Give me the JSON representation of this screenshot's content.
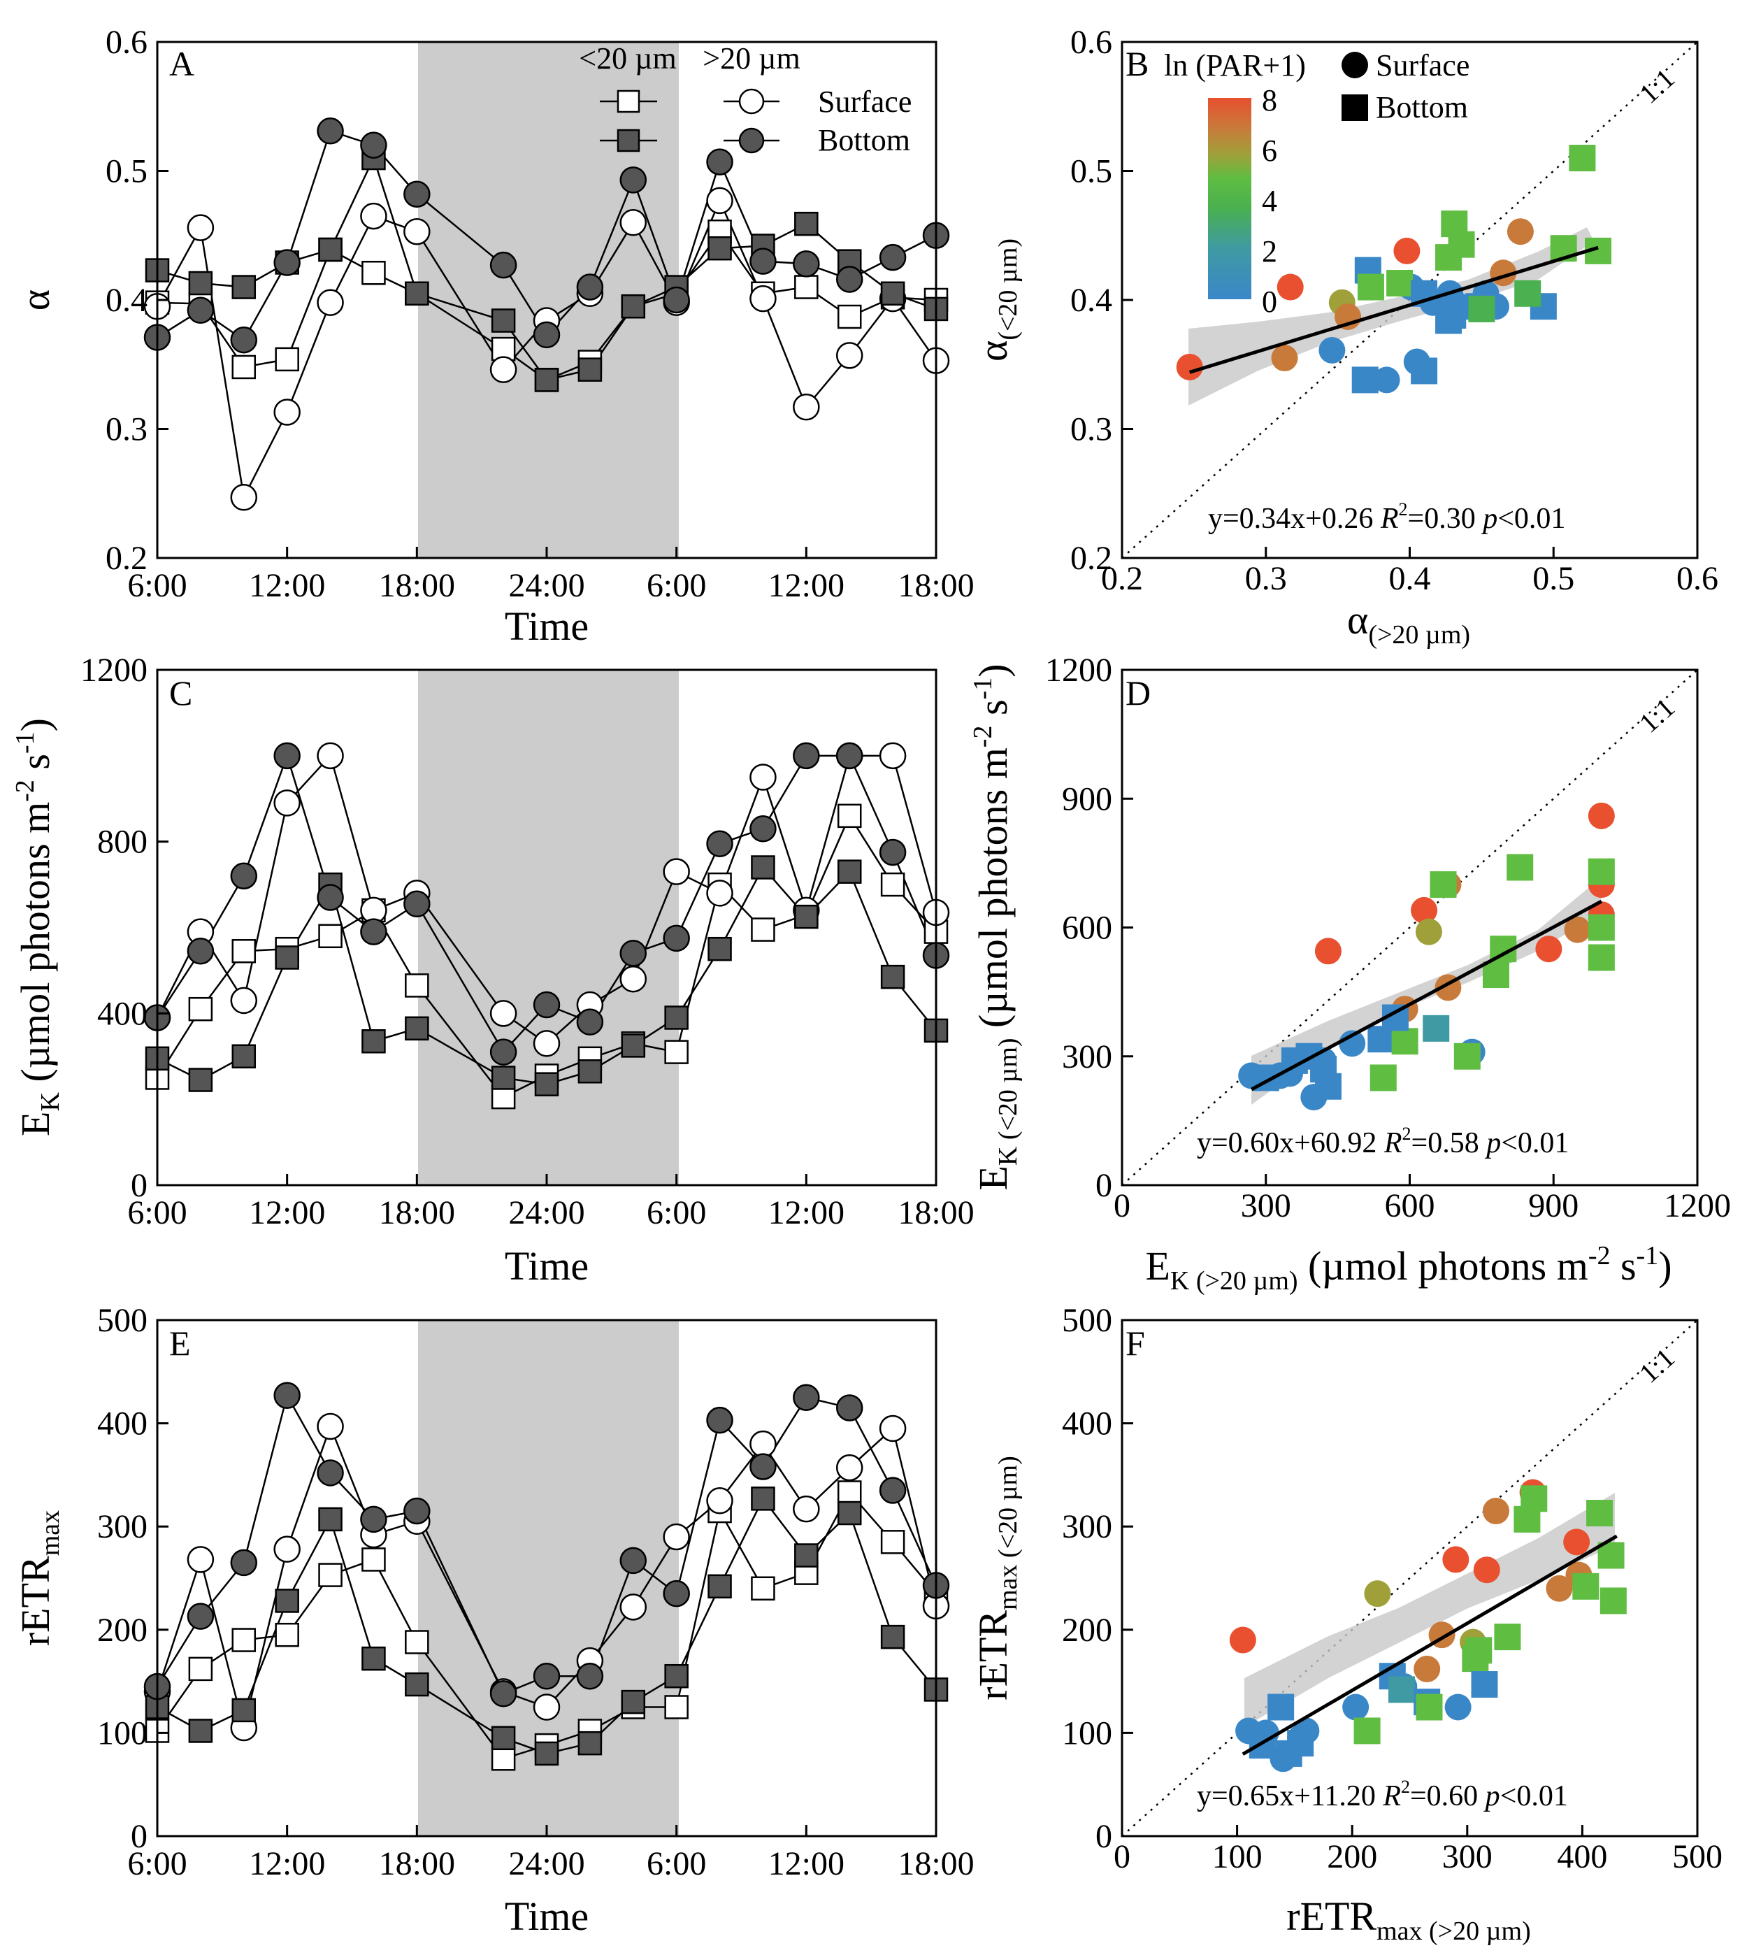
{
  "figure": {
    "legend": {
      "col_small": "<20 µm",
      "col_large": ">20 µm",
      "row_surface": "Surface",
      "row_bottom": "Bottom"
    },
    "scatter_legend": {
      "title": "ln (PAR+1)",
      "surface": "Surface",
      "bottom": "Bottom",
      "colorbar_ticks": [
        "0",
        "2",
        "4",
        "6",
        "8"
      ]
    },
    "one_to_one_label": "1:1"
  },
  "colors": {
    "shade": "#cccccc",
    "filled_marker": "#555555",
    "open_marker": "#ffffff",
    "colormap": [
      "#3a87c8",
      "#3f9aa3",
      "#4ab050",
      "#5fbd42",
      "#a0a03a",
      "#c87a3a",
      "#e85030"
    ]
  },
  "chart_data": [
    {
      "panel": "A",
      "type": "line",
      "xlabel": "Time",
      "ylabel": "α",
      "ylim": [
        0.2,
        0.6
      ],
      "yticks": [
        "0.2",
        "0.3",
        "0.4",
        "0.5",
        "0.6"
      ],
      "xticks": [
        "6:00",
        "12:00",
        "18:00",
        "24:00",
        "6:00",
        "12:00",
        "18:00"
      ],
      "x_hours": [
        6,
        8,
        10,
        12,
        14,
        16,
        18,
        22,
        24,
        26,
        28,
        30,
        32,
        34,
        36,
        38,
        40,
        42
      ],
      "dark_period_hours": [
        18,
        30
      ],
      "series": [
        {
          "name": "<20 µm Surface",
          "marker": "square",
          "fill": "open",
          "values": [
            0.398,
            0.397,
            0.348,
            0.354,
            0.439,
            0.421,
            0.405,
            0.362,
            0.338,
            0.352,
            0.395,
            0.405,
            0.453,
            0.405,
            0.41,
            0.387,
            0.402,
            0.4
          ]
        },
        {
          "name": ">20 µm Surface",
          "marker": "circle",
          "fill": "open",
          "values": [
            0.395,
            0.456,
            0.247,
            0.313,
            0.398,
            0.465,
            0.453,
            0.346,
            0.384,
            0.405,
            0.46,
            0.398,
            0.477,
            0.401,
            0.317,
            0.357,
            0.401,
            0.353
          ]
        },
        {
          "name": "<20 µm Bottom",
          "marker": "square",
          "fill": "filled",
          "values": [
            0.423,
            0.413,
            0.41,
            0.429,
            0.439,
            0.51,
            0.405,
            0.384,
            0.338,
            0.346,
            0.395,
            0.41,
            0.44,
            0.442,
            0.459,
            0.43,
            0.405,
            0.393
          ]
        },
        {
          "name": ">20 µm Bottom",
          "marker": "circle",
          "fill": "filled",
          "values": [
            0.371,
            0.392,
            0.369,
            0.429,
            0.531,
            0.52,
            0.482,
            0.427,
            0.373,
            0.41,
            0.493,
            0.4,
            0.507,
            0.43,
            0.428,
            0.416,
            0.433,
            0.45
          ]
        }
      ]
    },
    {
      "panel": "B",
      "type": "scatter",
      "xlabel": "α(>20 µm)",
      "ylabel": "α(<20 µm)",
      "xlim": [
        0.2,
        0.6
      ],
      "ylim": [
        0.2,
        0.6
      ],
      "xticks": [
        "0.2",
        "0.3",
        "0.4",
        "0.5",
        "0.6"
      ],
      "yticks": [
        "0.2",
        "0.3",
        "0.4",
        "0.5",
        "0.6"
      ],
      "equation": "y=0.34x+0.26 R²=0.30 p<0.01",
      "fit": {
        "slope": 0.34,
        "intercept": 0.26,
        "x_range": [
          0.247,
          0.531
        ]
      },
      "points": [
        [
          0.247,
          0.348,
          "circle",
          7.6
        ],
        [
          0.317,
          0.41,
          "circle",
          7.4
        ],
        [
          0.313,
          0.355,
          "circle",
          7.0
        ],
        [
          0.353,
          0.398,
          "circle",
          5.6
        ],
        [
          0.357,
          0.387,
          "circle",
          6.8
        ],
        [
          0.346,
          0.361,
          "circle",
          0.2
        ],
        [
          0.384,
          0.338,
          "circle",
          0.3
        ],
        [
          0.398,
          0.438,
          "circle",
          7.5
        ],
        [
          0.405,
          0.352,
          "circle",
          0.4
        ],
        [
          0.401,
          0.41,
          "circle",
          0.2
        ],
        [
          0.46,
          0.395,
          "circle",
          0.2
        ],
        [
          0.465,
          0.421,
          "circle",
          6.9
        ],
        [
          0.477,
          0.453,
          "circle",
          6.5
        ],
        [
          0.453,
          0.405,
          "circle",
          0.3
        ],
        [
          0.428,
          0.405,
          "circle",
          0.5
        ],
        [
          0.416,
          0.398,
          "circle",
          0.4
        ],
        [
          0.433,
          0.396,
          "circle",
          0.2
        ],
        [
          0.371,
          0.423,
          "square",
          0.4
        ],
        [
          0.373,
          0.41,
          "square",
          4.0
        ],
        [
          0.369,
          0.338,
          "square",
          0.3
        ],
        [
          0.393,
          0.413,
          "square",
          3.8
        ],
        [
          0.41,
          0.345,
          "square",
          0.4
        ],
        [
          0.427,
          0.433,
          "square",
          4.2
        ],
        [
          0.431,
          0.459,
          "square",
          4.2
        ],
        [
          0.436,
          0.443,
          "square",
          3.9
        ],
        [
          0.43,
          0.388,
          "square",
          0.2
        ],
        [
          0.448,
          0.395,
          "square",
          0.5
        ],
        [
          0.493,
          0.395,
          "square",
          0.3
        ],
        [
          0.507,
          0.44,
          "square",
          3.9
        ],
        [
          0.52,
          0.51,
          "square",
          4.2
        ],
        [
          0.531,
          0.438,
          "square",
          4.0
        ],
        [
          0.482,
          0.405,
          "square",
          2.6
        ],
        [
          0.41,
          0.405,
          "square",
          0.6
        ],
        [
          0.45,
          0.393,
          "square",
          2.5
        ],
        [
          0.427,
          0.384,
          "square",
          0.5
        ]
      ]
    },
    {
      "panel": "C",
      "type": "line",
      "xlabel": "Time",
      "ylabel": "EK (µmol photons m-2 s-1)",
      "ylim": [
        0,
        1200
      ],
      "yticks": [
        "0",
        "400",
        "800",
        "1200"
      ],
      "xticks": [
        "6:00",
        "12:00",
        "18:00",
        "24:00",
        "6:00",
        "12:00",
        "18:00"
      ],
      "x_hours": [
        6,
        8,
        10,
        12,
        14,
        16,
        18,
        22,
        24,
        26,
        28,
        30,
        32,
        34,
        36,
        38,
        40,
        42
      ],
      "dark_period_hours": [
        18,
        30
      ],
      "series": [
        {
          "name": "<20 µm Surface",
          "marker": "square",
          "fill": "open",
          "values": [
            250,
            410,
            545,
            550,
            580,
            640,
            465,
            205,
            255,
            295,
            330,
            310,
            700,
            595,
            630,
            860,
            700,
            590
          ]
        },
        {
          "name": ">20 µm Surface",
          "marker": "circle",
          "fill": "open",
          "values": [
            390,
            590,
            430,
            890,
            1000,
            640,
            680,
            400,
            330,
            420,
            480,
            730,
            680,
            950,
            640,
            1000,
            1000,
            635
          ]
        },
        {
          "name": "<20 µm Bottom",
          "marker": "square",
          "fill": "filled",
          "values": [
            295,
            245,
            300,
            530,
            700,
            335,
            365,
            250,
            235,
            265,
            325,
            390,
            550,
            740,
            625,
            730,
            485,
            360
          ]
        },
        {
          "name": ">20 µm Bottom",
          "marker": "circle",
          "fill": "filled",
          "values": [
            390,
            545,
            720,
            1000,
            670,
            590,
            655,
            310,
            420,
            380,
            540,
            575,
            795,
            830,
            1000,
            1000,
            775,
            535
          ]
        }
      ]
    },
    {
      "panel": "D",
      "type": "scatter",
      "xlabel": "EK (>20 µm) (µmol photons m-2 s-1)",
      "ylabel": "EK (<20 µm) (µmol photons m-2 s-1)",
      "xlim": [
        0,
        1200
      ],
      "ylim": [
        0,
        1200
      ],
      "xticks": [
        "0",
        "300",
        "600",
        "900",
        "1200"
      ],
      "yticks": [
        "0",
        "300",
        "600",
        "900",
        "1200"
      ],
      "equation": "y=0.60x+60.92 R²=0.58 p<0.01",
      "fit": {
        "slope": 0.6,
        "intercept": 60.92,
        "x_range": [
          270,
          1000
        ]
      },
      "points": [
        [
          270,
          255,
          "circle",
          0.3
        ],
        [
          330,
          255,
          "circle",
          0.2
        ],
        [
          400,
          205,
          "circle",
          0.3
        ],
        [
          430,
          545,
          "circle",
          7.6
        ],
        [
          480,
          330,
          "circle",
          0.4
        ],
        [
          590,
          410,
          "circle",
          7.0
        ],
        [
          630,
          640,
          "circle",
          7.6
        ],
        [
          640,
          590,
          "circle",
          5.5
        ],
        [
          680,
          460,
          "circle",
          6.0
        ],
        [
          680,
          700,
          "circle",
          7.2
        ],
        [
          730,
          310,
          "circle",
          0.2
        ],
        [
          890,
          550,
          "circle",
          7.6
        ],
        [
          950,
          595,
          "circle",
          7.3
        ],
        [
          1000,
          700,
          "circle",
          7.6
        ],
        [
          1000,
          630,
          "circle",
          7.6
        ],
        [
          1000,
          860,
          "circle",
          7.5
        ],
        [
          420,
          290,
          "circle",
          0.4
        ],
        [
          350,
          260,
          "circle",
          0.3
        ],
        [
          300,
          250,
          "square",
          0.2
        ],
        [
          390,
          300,
          "square",
          0.3
        ],
        [
          430,
          230,
          "square",
          0.3
        ],
        [
          540,
          340,
          "square",
          0.5
        ],
        [
          545,
          250,
          "square",
          4.1
        ],
        [
          590,
          335,
          "square",
          4.0
        ],
        [
          570,
          390,
          "square",
          0.3
        ],
        [
          655,
          365,
          "square",
          1.2
        ],
        [
          670,
          700,
          "square",
          4.2
        ],
        [
          720,
          300,
          "square",
          4.0
        ],
        [
          780,
          490,
          "square",
          4.0
        ],
        [
          795,
          550,
          "square",
          3.8
        ],
        [
          830,
          740,
          "square",
          4.3
        ],
        [
          1000,
          730,
          "square",
          4.1
        ],
        [
          1000,
          600,
          "square",
          4.0
        ],
        [
          1000,
          530,
          "square",
          4.0
        ],
        [
          420,
          270,
          "square",
          0.2
        ],
        [
          360,
          290,
          "square",
          0.3
        ]
      ]
    },
    {
      "panel": "E",
      "type": "line",
      "xlabel": "Time",
      "ylabel": "rETRmax",
      "ylim": [
        0,
        500
      ],
      "yticks": [
        "0",
        "100",
        "200",
        "300",
        "400",
        "500"
      ],
      "xticks": [
        "6:00",
        "12:00",
        "18:00",
        "24:00",
        "6:00",
        "12:00",
        "18:00"
      ],
      "x_hours": [
        6,
        8,
        10,
        12,
        14,
        16,
        18,
        22,
        24,
        26,
        28,
        30,
        32,
        34,
        36,
        38,
        40,
        42
      ],
      "dark_period_hours": [
        18,
        30
      ],
      "series": [
        {
          "name": "<20 µm Surface",
          "marker": "square",
          "fill": "open",
          "values": [
            102,
            162,
            190,
            195,
            253,
            268,
            188,
            75,
            88,
            102,
            125,
            125,
            315,
            240,
            255,
            333,
            285,
            235
          ]
        },
        {
          "name": ">20 µm Surface",
          "marker": "circle",
          "fill": "open",
          "values": [
            140,
            268,
            105,
            278,
            397,
            292,
            305,
            140,
            125,
            170,
            222,
            290,
            325,
            380,
            317,
            357,
            395,
            223
          ]
        },
        {
          "name": "<20 µm Bottom",
          "marker": "square",
          "fill": "filled",
          "values": [
            125,
            102,
            122,
            228,
            307,
            172,
            147,
            95,
            80,
            90,
            130,
            155,
            242,
            327,
            272,
            313,
            193,
            142
          ]
        },
        {
          "name": ">20 µm Bottom",
          "marker": "circle",
          "fill": "filled",
          "values": [
            145,
            213,
            265,
            427,
            352,
            307,
            315,
            138,
            155,
            155,
            267,
            235,
            403,
            358,
            425,
            415,
            335,
            243
          ]
        }
      ]
    },
    {
      "panel": "F",
      "type": "scatter",
      "xlabel": "rETRmax (>20 µm)",
      "ylabel": "rETRmax (<20 µm)",
      "xlim": [
        0,
        500
      ],
      "ylim": [
        0,
        500
      ],
      "xticks": [
        "0",
        "100",
        "200",
        "300",
        "400",
        "500"
      ],
      "yticks": [
        "0",
        "100",
        "200",
        "300",
        "400",
        "500"
      ],
      "equation": "y=0.65x+11.20 R²=0.60 p<0.01",
      "fit": {
        "slope": 0.65,
        "intercept": 11.2,
        "x_range": [
          105,
          430
        ]
      },
      "points": [
        [
          105,
          190,
          "circle",
          7.6
        ],
        [
          110,
          102,
          "circle",
          0.3
        ],
        [
          125,
          100,
          "circle",
          0.3
        ],
        [
          140,
          75,
          "circle",
          0.3
        ],
        [
          155,
          95,
          "circle",
          0.2
        ],
        [
          160,
          102,
          "circle",
          0.3
        ],
        [
          222,
          235,
          "circle",
          5.6
        ],
        [
          245,
          145,
          "circle",
          0.4
        ],
        [
          265,
          162,
          "circle",
          6.9
        ],
        [
          278,
          195,
          "circle",
          7.3
        ],
        [
          290,
          268,
          "circle",
          7.6
        ],
        [
          292,
          125,
          "circle",
          0.2
        ],
        [
          305,
          188,
          "circle",
          5.5
        ],
        [
          317,
          258,
          "circle",
          7.6
        ],
        [
          325,
          315,
          "circle",
          7.0
        ],
        [
          357,
          333,
          "circle",
          7.6
        ],
        [
          380,
          240,
          "circle",
          7.2
        ],
        [
          395,
          285,
          "circle",
          7.5
        ],
        [
          397,
          253,
          "circle",
          7.0
        ],
        [
          203,
          125,
          "circle",
          0.2
        ],
        [
          122,
          88,
          "square",
          0.2
        ],
        [
          145,
          80,
          "square",
          0.3
        ],
        [
          138,
          125,
          "square",
          0.4
        ],
        [
          155,
          90,
          "square",
          0.3
        ],
        [
          213,
          102,
          "square",
          4.0
        ],
        [
          235,
          155,
          "square",
          0.3
        ],
        [
          243,
          142,
          "square",
          1.5
        ],
        [
          265,
          130,
          "square",
          0.3
        ],
        [
          267,
          125,
          "square",
          4.0
        ],
        [
          307,
          172,
          "square",
          4.1
        ],
        [
          315,
          147,
          "square",
          0.5
        ],
        [
          335,
          193,
          "square",
          4.0
        ],
        [
          352,
          307,
          "square",
          4.2
        ],
        [
          358,
          327,
          "square",
          4.3
        ],
        [
          403,
          242,
          "square",
          4.0
        ],
        [
          415,
          313,
          "square",
          4.1
        ],
        [
          425,
          272,
          "square",
          4.0
        ],
        [
          427,
          228,
          "square",
          3.9
        ],
        [
          310,
          180,
          "square",
          3.8
        ]
      ]
    }
  ]
}
